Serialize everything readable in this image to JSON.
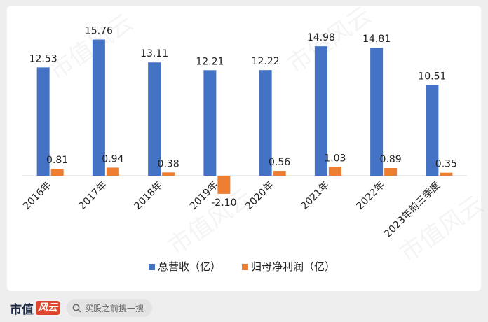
{
  "chart_data": {
    "type": "bar",
    "categories": [
      "2016年",
      "2017年",
      "2018年",
      "2019年",
      "2020年",
      "2021年",
      "2022年",
      "2023年前三季度"
    ],
    "series": [
      {
        "name": "总营收（亿）",
        "values": [
          12.53,
          15.76,
          13.11,
          12.21,
          12.22,
          14.98,
          14.81,
          10.51
        ],
        "color": "#4472c4"
      },
      {
        "name": "归母净利润（亿）",
        "values": [
          0.81,
          0.94,
          0.38,
          -2.1,
          0.56,
          1.03,
          0.89,
          0.35
        ],
        "color": "#ed7d31"
      }
    ],
    "value_labels": [
      [
        "12.53",
        "15.76",
        "13.11",
        "12.21",
        "12.22",
        "14.98",
        "14.81",
        "10.51"
      ],
      [
        "0.81",
        "0.94",
        "0.38",
        "-2.10",
        "0.56",
        "1.03",
        "0.89",
        "0.35"
      ]
    ],
    "ylim": [
      -2.1,
      15.76
    ],
    "grid": false,
    "legend_position": "bottom"
  },
  "footer": {
    "brand": "市值",
    "brand_mark": "风云",
    "search_placeholder": "买股之前搜一搜"
  },
  "watermark_text": "市值风云"
}
